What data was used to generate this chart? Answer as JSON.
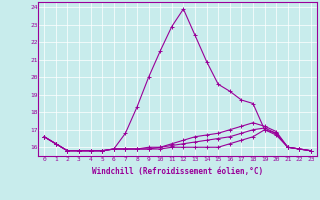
{
  "xlabel": "Windchill (Refroidissement éolien,°C)",
  "ylabel": "",
  "xlim": [
    -0.5,
    23.5
  ],
  "ylim": [
    15.5,
    24.3
  ],
  "yticks": [
    16,
    17,
    18,
    19,
    20,
    21,
    22,
    23,
    24
  ],
  "xticks": [
    0,
    1,
    2,
    3,
    4,
    5,
    6,
    7,
    8,
    9,
    10,
    11,
    12,
    13,
    14,
    15,
    16,
    17,
    18,
    19,
    20,
    21,
    22,
    23
  ],
  "bg_color": "#c8ecec",
  "grid_color": "#ffffff",
  "line_color": "#990099",
  "lines": [
    [
      16.6,
      16.2,
      15.8,
      15.8,
      15.8,
      15.8,
      15.9,
      16.8,
      18.3,
      20.0,
      21.5,
      22.9,
      23.9,
      22.4,
      20.9,
      19.6,
      19.2,
      18.7,
      18.5,
      17.0,
      16.8,
      16.0,
      15.9,
      15.8
    ],
    [
      16.6,
      16.2,
      15.8,
      15.8,
      15.8,
      15.8,
      15.9,
      15.9,
      15.9,
      15.9,
      15.9,
      16.0,
      16.0,
      16.0,
      16.0,
      16.0,
      16.2,
      16.4,
      16.6,
      17.0,
      16.7,
      16.0,
      15.9,
      15.8
    ],
    [
      16.6,
      16.2,
      15.8,
      15.8,
      15.8,
      15.8,
      15.9,
      15.9,
      15.9,
      15.9,
      16.0,
      16.2,
      16.4,
      16.6,
      16.7,
      16.8,
      17.0,
      17.2,
      17.4,
      17.2,
      16.9,
      16.0,
      15.9,
      15.8
    ],
    [
      16.6,
      16.2,
      15.8,
      15.8,
      15.8,
      15.8,
      15.9,
      15.9,
      15.9,
      16.0,
      16.0,
      16.1,
      16.2,
      16.3,
      16.4,
      16.5,
      16.6,
      16.8,
      17.0,
      17.1,
      16.8,
      16.0,
      15.9,
      15.8
    ]
  ],
  "tick_fontsize": 4.5,
  "xlabel_fontsize": 5.5
}
